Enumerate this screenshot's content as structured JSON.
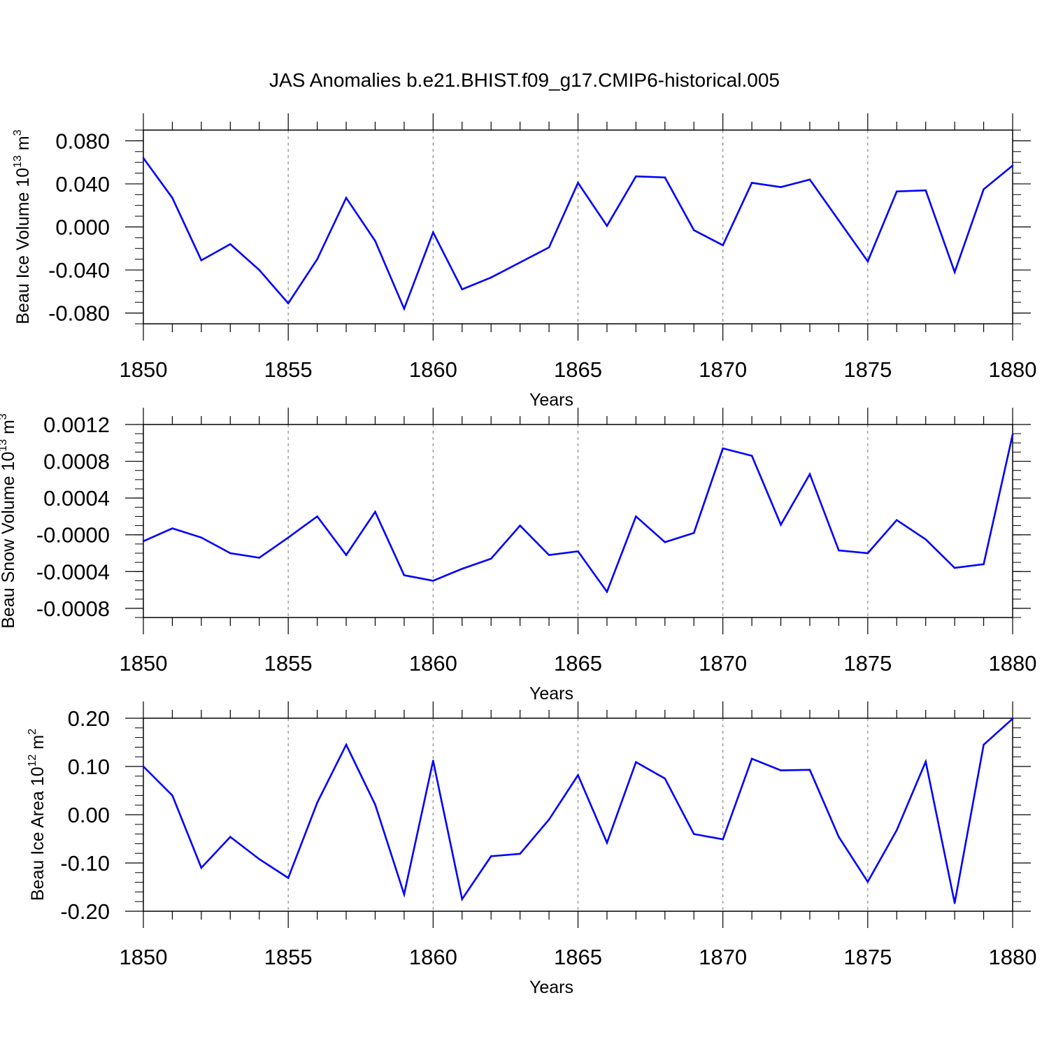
{
  "figure": {
    "title": "JAS Anomalies b.e21.BHIST.f09_g17.CMIP6-historical.005"
  },
  "colors": {
    "line": "#0000ff",
    "axis": "#000000",
    "grid": "#888888",
    "background": "#ffffff"
  },
  "chart_data": [
    {
      "type": "line",
      "ylabel": {
        "base": "Beau Ice Volume 10",
        "exp": "13",
        "unit": " m",
        "unit_exp": "3"
      },
      "xlabel": "Years",
      "xlim": [
        1850,
        1880
      ],
      "ylim": [
        -0.09,
        0.09
      ],
      "xticks": [
        "1850",
        "1855",
        "1860",
        "1865",
        "1870",
        "1875",
        "1880"
      ],
      "yticks": [
        "0.080",
        "0.040",
        "0.000",
        "-0.040",
        "-0.080"
      ],
      "ytick_values": [
        0.08,
        0.04,
        0.0,
        -0.04,
        -0.08
      ],
      "minor_ystep": 0.01,
      "x": [
        1850,
        1851,
        1852,
        1853,
        1854,
        1855,
        1856,
        1857,
        1858,
        1859,
        1860,
        1861,
        1862,
        1863,
        1864,
        1865,
        1866,
        1867,
        1868,
        1869,
        1870,
        1871,
        1872,
        1873,
        1874,
        1875,
        1876,
        1877,
        1878,
        1879,
        1880
      ],
      "values": [
        0.064,
        0.027,
        -0.031,
        -0.016,
        -0.04,
        -0.071,
        -0.03,
        0.027,
        -0.013,
        -0.076,
        -0.005,
        -0.058,
        -0.047,
        -0.033,
        -0.019,
        0.041,
        0.001,
        0.047,
        0.046,
        -0.003,
        -0.017,
        0.041,
        0.037,
        0.044,
        0.006,
        -0.032,
        0.033,
        0.034,
        -0.042,
        0.035,
        0.057
      ]
    },
    {
      "type": "line",
      "ylabel": {
        "base": "Beau Snow Volume 10",
        "exp": "13",
        "unit": " m",
        "unit_exp": "3"
      },
      "xlabel": "Years",
      "xlim": [
        1850,
        1880
      ],
      "ylim": [
        -0.0009,
        0.0012
      ],
      "xticks": [
        "1850",
        "1855",
        "1860",
        "1865",
        "1870",
        "1875",
        "1880"
      ],
      "yticks": [
        "0.0012",
        "0.0008",
        "0.0004",
        "-0.0000",
        "-0.0004",
        "-0.0008"
      ],
      "ytick_values": [
        0.0012,
        0.0008,
        0.0004,
        0.0,
        -0.0004,
        -0.0008
      ],
      "minor_ystep": 0.0001,
      "x": [
        1850,
        1851,
        1852,
        1853,
        1854,
        1855,
        1856,
        1857,
        1858,
        1859,
        1860,
        1861,
        1862,
        1863,
        1864,
        1865,
        1866,
        1867,
        1868,
        1869,
        1870,
        1871,
        1872,
        1873,
        1874,
        1875,
        1876,
        1877,
        1878,
        1879,
        1880
      ],
      "values": [
        -7e-05,
        7e-05,
        -3e-05,
        -0.0002,
        -0.00025,
        -3e-05,
        0.0002,
        -0.00022,
        0.00025,
        -0.00044,
        -0.0005,
        -0.00037,
        -0.00026,
        0.0001,
        -0.00022,
        -0.00018,
        -0.00062,
        0.0002,
        -8e-05,
        2e-05,
        0.00094,
        0.00086,
        0.00011,
        0.00066,
        -0.00017,
        -0.0002,
        0.00016,
        -5e-05,
        -0.00036,
        -0.00032,
        0.00109
      ]
    },
    {
      "type": "line",
      "ylabel": {
        "base": "Beau Ice Area 10",
        "exp": "12",
        "unit": " m",
        "unit_exp": "2"
      },
      "xlabel": "Years",
      "xlim": [
        1850,
        1880
      ],
      "ylim": [
        -0.2,
        0.2
      ],
      "xticks": [
        "1850",
        "1855",
        "1860",
        "1865",
        "1870",
        "1875",
        "1880"
      ],
      "yticks": [
        "0.20",
        "0.10",
        "0.00",
        "-0.10",
        "-0.20"
      ],
      "ytick_values": [
        0.2,
        0.1,
        0.0,
        -0.1,
        -0.2
      ],
      "minor_ystep": 0.02,
      "x": [
        1850,
        1851,
        1852,
        1853,
        1854,
        1855,
        1856,
        1857,
        1858,
        1859,
        1860,
        1861,
        1862,
        1863,
        1864,
        1865,
        1866,
        1867,
        1868,
        1869,
        1870,
        1871,
        1872,
        1873,
        1874,
        1875,
        1876,
        1877,
        1878,
        1879,
        1880
      ],
      "values": [
        0.1,
        0.04,
        -0.11,
        -0.046,
        -0.092,
        -0.131,
        0.025,
        0.145,
        0.021,
        -0.165,
        0.112,
        -0.175,
        -0.086,
        -0.081,
        -0.01,
        0.082,
        -0.058,
        0.109,
        0.075,
        -0.04,
        -0.051,
        0.116,
        0.092,
        0.093,
        -0.046,
        -0.139,
        -0.032,
        0.11,
        -0.183,
        0.145,
        0.199
      ]
    }
  ]
}
